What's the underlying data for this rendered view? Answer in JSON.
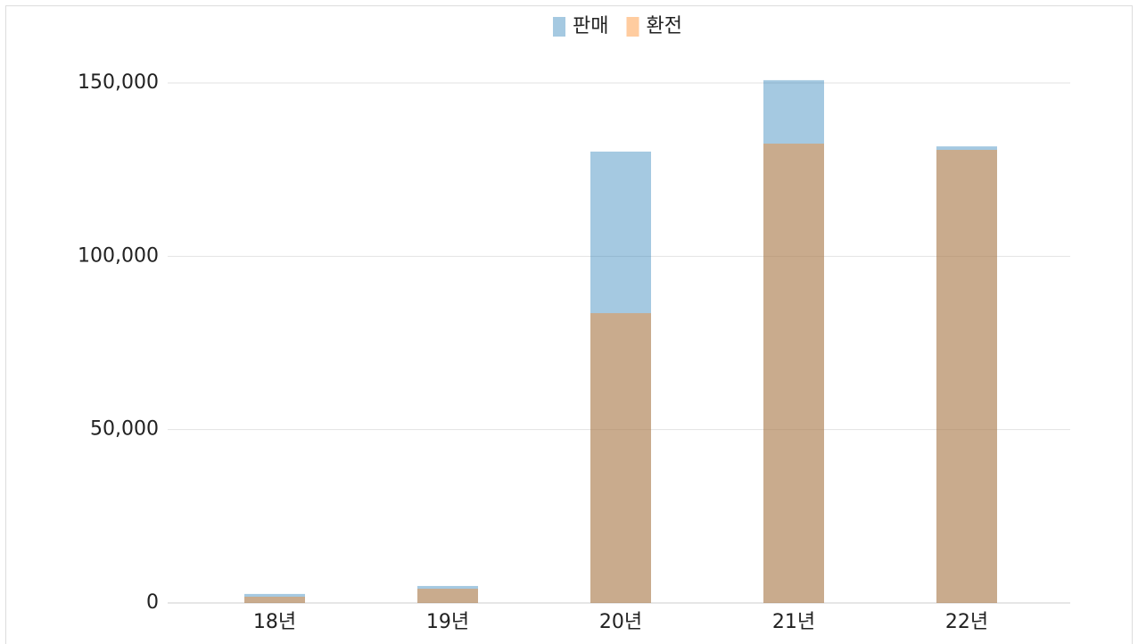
{
  "chart_data": {
    "type": "bar",
    "overlap": true,
    "categories": [
      "18년",
      "19년",
      "20년",
      "21년",
      "22년"
    ],
    "series": [
      {
        "name": "판매",
        "color": "#1f77b4",
        "values": [
          2600,
          4900,
          130200,
          150800,
          131700
        ]
      },
      {
        "name": "환전",
        "color": "#ff7f0e",
        "values": [
          1800,
          4100,
          83600,
          132500,
          130700
        ]
      }
    ],
    "ylim": [
      0,
      150000
    ],
    "yticks": [
      0,
      {
        "value": 50000,
        "label": "50,000"
      },
      {
        "value": 100000,
        "label": "100,000"
      },
      {
        "value": 150000,
        "label": "150,000"
      }
    ],
    "grid": true,
    "legend": "top"
  }
}
